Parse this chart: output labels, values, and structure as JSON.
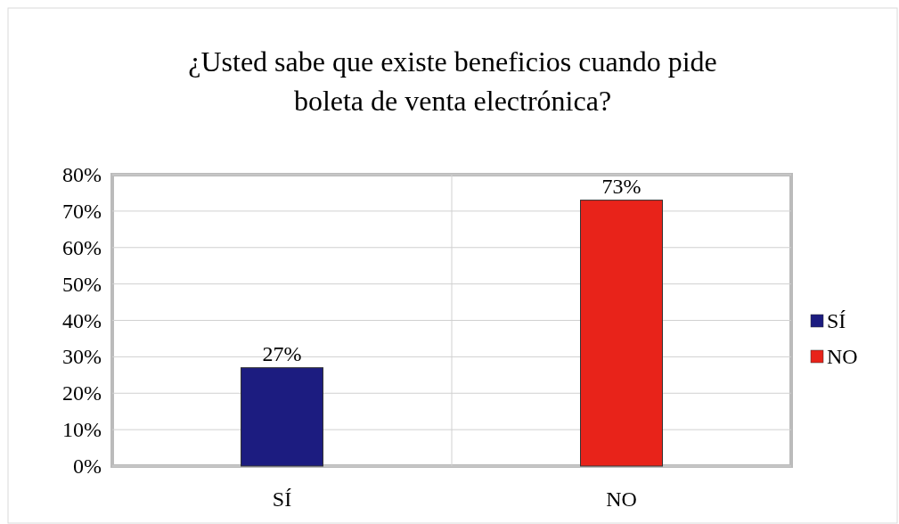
{
  "chart_data": {
    "type": "bar",
    "title": "¿Usted sabe que existe beneficios cuando pide boleta de venta electrónica?",
    "categories": [
      "SÍ",
      "NO"
    ],
    "series": [
      {
        "name": "SÍ",
        "color": "#1c1c80",
        "values": [
          27,
          null
        ],
        "value_labels": [
          "27%",
          null
        ]
      },
      {
        "name": "NO",
        "color": "#e8231a",
        "values": [
          null,
          73
        ],
        "value_labels": [
          null,
          "73%"
        ]
      }
    ],
    "ylim": [
      0,
      80
    ],
    "yticks": [
      {
        "value": 0,
        "label": "0%"
      },
      {
        "value": 10,
        "label": "10%"
      },
      {
        "value": 20,
        "label": "20%"
      },
      {
        "value": 30,
        "label": "30%"
      },
      {
        "value": 40,
        "label": "40%"
      },
      {
        "value": 50,
        "label": "50%"
      },
      {
        "value": 60,
        "label": "60%"
      },
      {
        "value": 70,
        "label": "70%"
      },
      {
        "value": 80,
        "label": "80%"
      }
    ],
    "grid": true,
    "legend": "right"
  }
}
